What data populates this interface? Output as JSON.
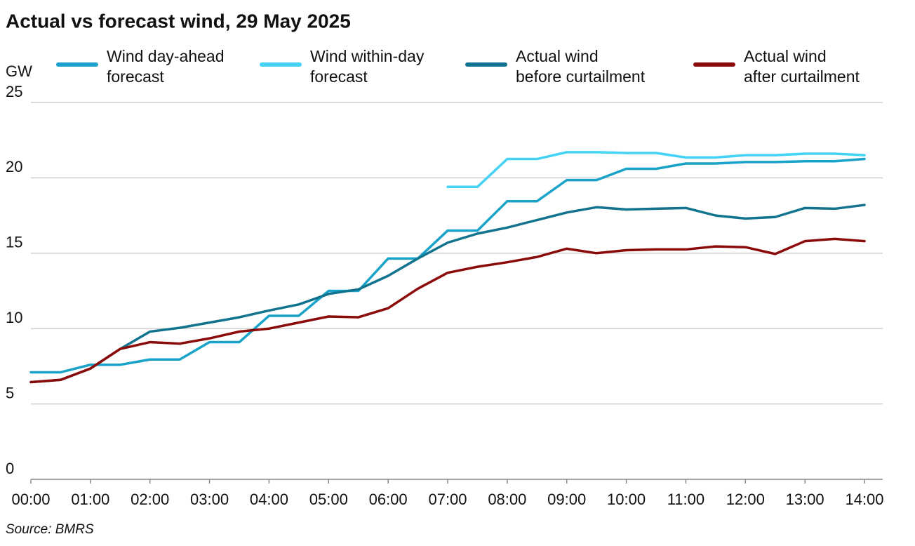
{
  "chart_data": {
    "type": "line",
    "title": "Actual vs forecast wind, 29 May 2025",
    "y_label": "GW",
    "source": "Source: BMRS",
    "x": [
      0,
      0.5,
      1,
      1.5,
      2,
      2.5,
      3,
      3.5,
      4,
      4.5,
      5,
      5.5,
      6,
      6.5,
      7,
      7.5,
      8,
      8.5,
      9,
      9.5,
      10,
      10.5,
      11,
      11.5,
      12,
      12.5,
      13,
      13.5,
      14
    ],
    "xlim": [
      0,
      14
    ],
    "xticks": [
      {
        "value": 0,
        "label": "00:00"
      },
      {
        "value": 1,
        "label": "01:00"
      },
      {
        "value": 2,
        "label": "02:00"
      },
      {
        "value": 3,
        "label": "03:00"
      },
      {
        "value": 4,
        "label": "04:00"
      },
      {
        "value": 5,
        "label": "05:00"
      },
      {
        "value": 6,
        "label": "06:00"
      },
      {
        "value": 7,
        "label": "07:00"
      },
      {
        "value": 8,
        "label": "08:00"
      },
      {
        "value": 9,
        "label": "09:00"
      },
      {
        "value": 10,
        "label": "10:00"
      },
      {
        "value": 11,
        "label": "11:00"
      },
      {
        "value": 12,
        "label": "12:00"
      },
      {
        "value": 13,
        "label": "13:00"
      },
      {
        "value": 14,
        "label": "14:00"
      }
    ],
    "ylim": [
      0,
      25
    ],
    "yticks": [
      0,
      5,
      10,
      15,
      20,
      25
    ],
    "grid": true,
    "series": [
      {
        "name": "Wind day-ahead\nforecast",
        "color": "#1aa3c8",
        "values": [
          7.1,
          7.1,
          7.6,
          7.6,
          7.95,
          7.95,
          9.1,
          9.1,
          10.85,
          10.85,
          12.5,
          12.5,
          14.65,
          14.65,
          16.5,
          16.5,
          18.45,
          18.45,
          19.85,
          19.85,
          20.6,
          20.6,
          20.95,
          20.95,
          21.05,
          21.05,
          21.1,
          21.1,
          21.25
        ]
      },
      {
        "name": "Wind within-day\nforecast",
        "color": "#45d3f5",
        "values": [
          null,
          null,
          null,
          null,
          null,
          null,
          null,
          null,
          null,
          null,
          null,
          null,
          null,
          null,
          19.4,
          19.4,
          21.25,
          21.25,
          21.7,
          21.7,
          21.65,
          21.65,
          21.35,
          21.35,
          21.5,
          21.5,
          21.6,
          21.6,
          21.5
        ]
      },
      {
        "name": "Actual wind\nbefore curtailment",
        "color": "#12738f",
        "values": [
          6.45,
          6.6,
          7.35,
          8.65,
          9.8,
          10.05,
          10.4,
          10.75,
          11.2,
          11.6,
          12.3,
          12.6,
          13.5,
          14.65,
          15.7,
          16.3,
          16.7,
          17.2,
          17.7,
          18.05,
          17.9,
          17.95,
          18.0,
          17.5,
          17.3,
          17.4,
          18.0,
          17.95,
          18.2
        ]
      },
      {
        "name": "Actual wind\nafter curtailment",
        "color": "#8b0a0a",
        "values": [
          6.45,
          6.6,
          7.35,
          8.65,
          9.1,
          9.0,
          9.35,
          9.8,
          10.0,
          10.4,
          10.8,
          10.75,
          11.35,
          12.65,
          13.7,
          14.1,
          14.4,
          14.75,
          15.3,
          15.0,
          15.2,
          15.25,
          15.25,
          15.45,
          15.4,
          14.95,
          15.8,
          15.95,
          15.8
        ]
      }
    ]
  }
}
